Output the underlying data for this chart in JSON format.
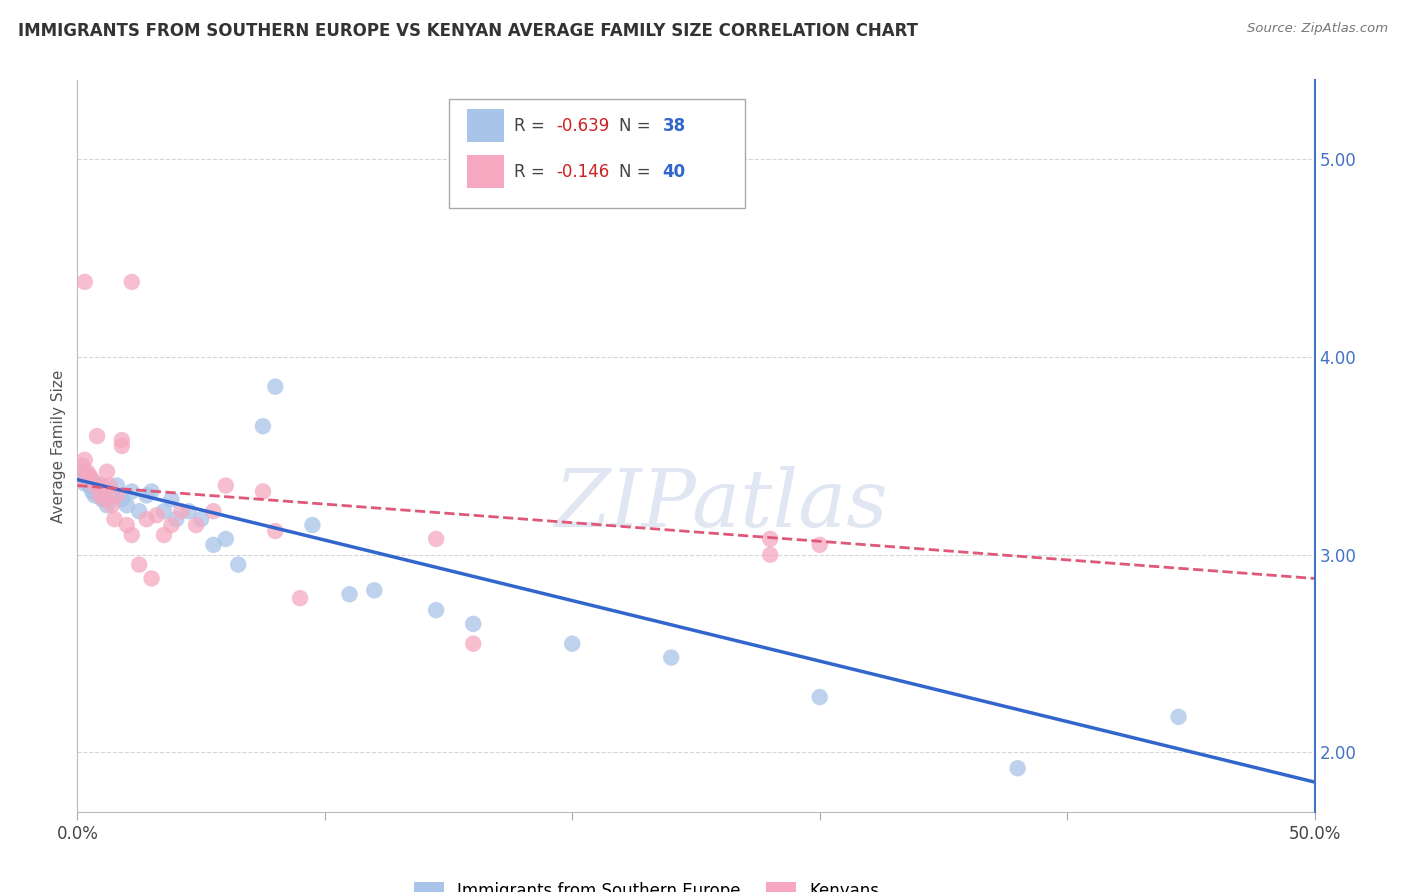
{
  "title": "IMMIGRANTS FROM SOUTHERN EUROPE VS KENYAN AVERAGE FAMILY SIZE CORRELATION CHART",
  "source": "Source: ZipAtlas.com",
  "ylabel": "Average Family Size",
  "yticks": [
    2.0,
    3.0,
    4.0,
    5.0
  ],
  "xlim": [
    0.0,
    0.5
  ],
  "ylim": [
    1.7,
    5.4
  ],
  "legend_r1": "R = -0.639",
  "legend_n1": "N = 38",
  "legend_r2": "R = -0.146",
  "legend_n2": "N = 40",
  "legend_label1": "Immigrants from Southern Europe",
  "legend_label2": "Kenyans",
  "blue_color": "#a8c4e8",
  "pink_color": "#f5a8c0",
  "blue_line_color": "#3366cc",
  "pink_line_color": "#e05878",
  "blue_r": -0.639,
  "blue_n": 38,
  "pink_r": -0.146,
  "pink_n": 40,
  "blue_scatter": [
    [
      0.001,
      3.38
    ],
    [
      0.002,
      3.42
    ],
    [
      0.003,
      3.36
    ],
    [
      0.004,
      3.4
    ],
    [
      0.005,
      3.35
    ],
    [
      0.006,
      3.32
    ],
    [
      0.007,
      3.3
    ],
    [
      0.008,
      3.36
    ],
    [
      0.01,
      3.28
    ],
    [
      0.012,
      3.25
    ],
    [
      0.014,
      3.3
    ],
    [
      0.016,
      3.35
    ],
    [
      0.018,
      3.28
    ],
    [
      0.02,
      3.25
    ],
    [
      0.022,
      3.32
    ],
    [
      0.025,
      3.22
    ],
    [
      0.028,
      3.3
    ],
    [
      0.03,
      3.32
    ],
    [
      0.035,
      3.22
    ],
    [
      0.038,
      3.28
    ],
    [
      0.04,
      3.18
    ],
    [
      0.045,
      3.22
    ],
    [
      0.05,
      3.18
    ],
    [
      0.055,
      3.05
    ],
    [
      0.06,
      3.08
    ],
    [
      0.065,
      2.95
    ],
    [
      0.075,
      3.65
    ],
    [
      0.08,
      3.85
    ],
    [
      0.095,
      3.15
    ],
    [
      0.11,
      2.8
    ],
    [
      0.12,
      2.82
    ],
    [
      0.145,
      2.72
    ],
    [
      0.16,
      2.65
    ],
    [
      0.2,
      2.55
    ],
    [
      0.24,
      2.48
    ],
    [
      0.3,
      2.28
    ],
    [
      0.38,
      1.92
    ],
    [
      0.445,
      2.18
    ]
  ],
  "pink_scatter": [
    [
      0.001,
      3.38
    ],
    [
      0.002,
      3.45
    ],
    [
      0.003,
      3.48
    ],
    [
      0.004,
      3.42
    ],
    [
      0.005,
      3.4
    ],
    [
      0.006,
      3.38
    ],
    [
      0.007,
      3.35
    ],
    [
      0.008,
      3.6
    ],
    [
      0.009,
      3.3
    ],
    [
      0.01,
      3.35
    ],
    [
      0.011,
      3.28
    ],
    [
      0.012,
      3.42
    ],
    [
      0.013,
      3.35
    ],
    [
      0.014,
      3.25
    ],
    [
      0.015,
      3.18
    ],
    [
      0.016,
      3.3
    ],
    [
      0.018,
      3.55
    ],
    [
      0.02,
      3.15
    ],
    [
      0.022,
      3.1
    ],
    [
      0.025,
      2.95
    ],
    [
      0.028,
      3.18
    ],
    [
      0.03,
      2.88
    ],
    [
      0.032,
      3.2
    ],
    [
      0.035,
      3.1
    ],
    [
      0.038,
      3.15
    ],
    [
      0.042,
      3.22
    ],
    [
      0.048,
      3.15
    ],
    [
      0.022,
      4.38
    ],
    [
      0.055,
      3.22
    ],
    [
      0.06,
      3.35
    ],
    [
      0.075,
      3.32
    ],
    [
      0.08,
      3.12
    ],
    [
      0.09,
      2.78
    ],
    [
      0.003,
      4.38
    ],
    [
      0.16,
      2.55
    ],
    [
      0.018,
      3.58
    ],
    [
      0.145,
      3.08
    ],
    [
      0.28,
      3.08
    ],
    [
      0.3,
      3.05
    ],
    [
      0.28,
      3.0
    ]
  ],
  "watermark": "ZIPatlas",
  "background_color": "#ffffff",
  "grid_color": "#cccccc"
}
